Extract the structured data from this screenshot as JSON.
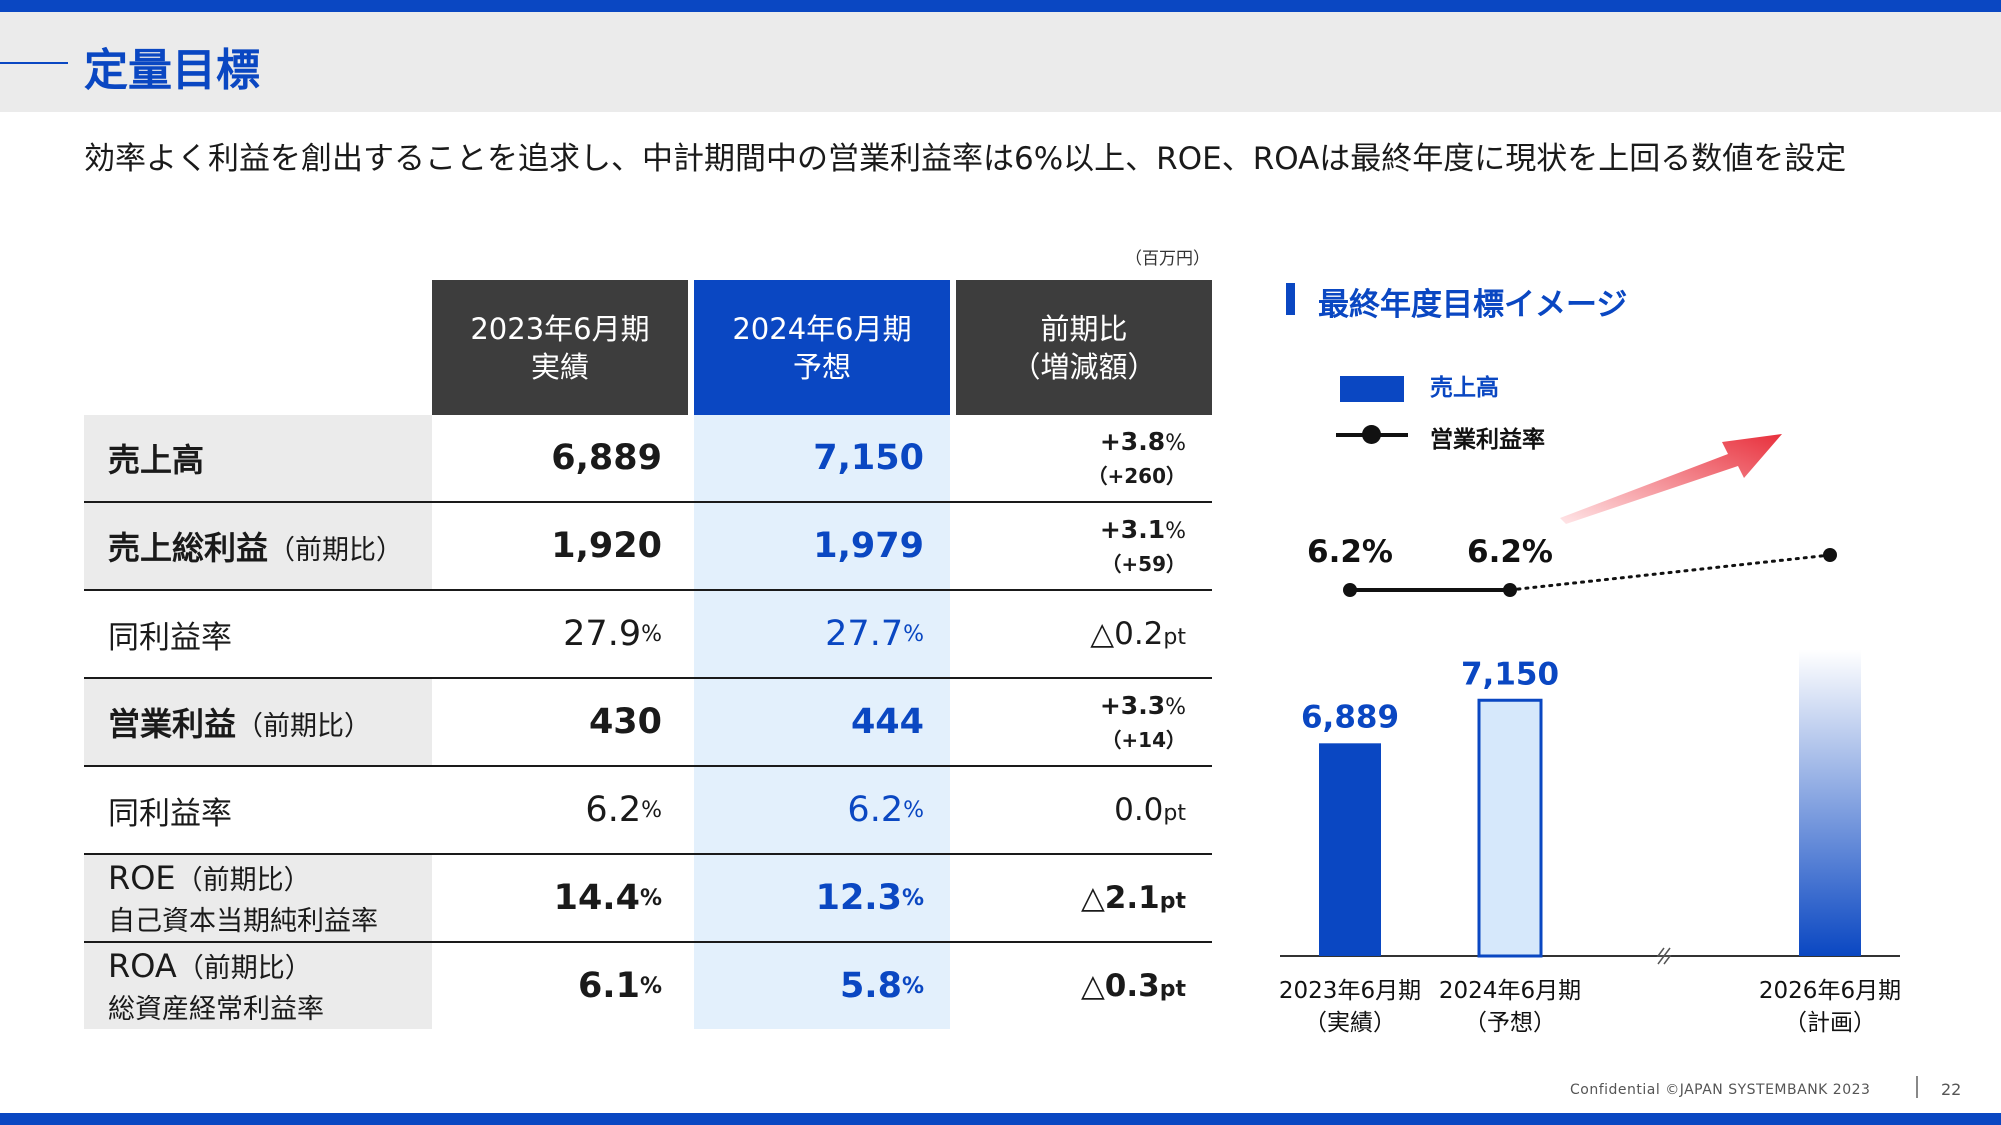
{
  "title": "定量目標",
  "lead_text": "効率よく利益を創出することを追求し、中計期間中の営業利益率は6%以上、ROE、ROAは最終年度に現状を上回る数値を設定",
  "unit_note": "（百万円）",
  "table": {
    "headers": [
      {
        "line1": "2023年6月期",
        "line2": "実績"
      },
      {
        "line1": "2024年6月期",
        "line2": "予想"
      },
      {
        "line1": "前期比",
        "line2": "（増減額）"
      }
    ],
    "rows": [
      {
        "label": "売上高",
        "label_sub": "",
        "label_line2": "",
        "v2023": "6,889",
        "v2023_unit": "",
        "v2024": "7,150",
        "v2024_unit": "",
        "change": "+3.8",
        "change_unit": "%",
        "change_sub": "（+260）"
      },
      {
        "label": "売上総利益",
        "label_sub": "（前期比）",
        "label_line2": "",
        "v2023": "1,920",
        "v2023_unit": "",
        "v2024": "1,979",
        "v2024_unit": "",
        "change": "+3.1",
        "change_unit": "%",
        "change_sub": "（+59）"
      },
      {
        "label": "同利益率",
        "label_sub": "",
        "label_line2": "",
        "v2023": "27.9",
        "v2023_unit": "%",
        "v2024": "27.7",
        "v2024_unit": "%",
        "change": "△0.2",
        "change_unit": "pt",
        "change_sub": ""
      },
      {
        "label": "営業利益",
        "label_sub": "（前期比）",
        "label_line2": "",
        "v2023": "430",
        "v2023_unit": "",
        "v2024": "444",
        "v2024_unit": "",
        "change": "+3.3",
        "change_unit": "%",
        "change_sub": "（+14）"
      },
      {
        "label": "同利益率",
        "label_sub": "",
        "label_line2": "",
        "v2023": "6.2",
        "v2023_unit": "%",
        "v2024": "6.2",
        "v2024_unit": "%",
        "change": "0.0",
        "change_unit": "pt",
        "change_sub": ""
      },
      {
        "label": "ROE",
        "label_sub": "（前期比）",
        "label_line2": "自己資本当期純利益率",
        "v2023": "14.4",
        "v2023_unit": "%",
        "v2024": "12.3",
        "v2024_unit": "%",
        "change": "△2.1",
        "change_unit": "pt",
        "change_sub": ""
      },
      {
        "label": "ROA",
        "label_sub": "（前期比）",
        "label_line2": "総資産経常利益率",
        "v2023": "6.1",
        "v2023_unit": "%",
        "v2024": "5.8",
        "v2024_unit": "%",
        "change": "△0.3",
        "change_unit": "pt",
        "change_sub": ""
      }
    ]
  },
  "chart_title": "最終年度目標イメージ",
  "chart_data": {
    "type": "bar",
    "title": "最終年度目標イメージ",
    "categories": [
      {
        "line1": "2023年6月期",
        "line2": "（実績）"
      },
      {
        "line1": "2024年6月期",
        "line2": "（予想）"
      },
      {
        "line1": "2026年6月期",
        "line2": "（計画）"
      }
    ],
    "series": [
      {
        "name": "売上高",
        "type": "bar",
        "values": [
          6889,
          7150,
          null
        ],
        "labels": [
          "6,889",
          "7,150",
          ""
        ]
      },
      {
        "name": "営業利益率",
        "type": "line",
        "values": [
          6.2,
          6.2,
          null
        ],
        "labels": [
          "6.2%",
          "6.2%",
          ""
        ]
      }
    ],
    "legend": "top-left",
    "axis_break": true,
    "colors": {
      "actual": "#0a47c2",
      "forecast_fill": "#d6e8fb",
      "plan_gradient_top": "#ffffff",
      "plan_gradient_bottom": "#0a47c2",
      "arrow": "#e8303c",
      "line": "#111111"
    }
  },
  "footer": {
    "confidential": "Confidential  ©JAPAN SYSTEMBANK 2023",
    "page": "22"
  }
}
